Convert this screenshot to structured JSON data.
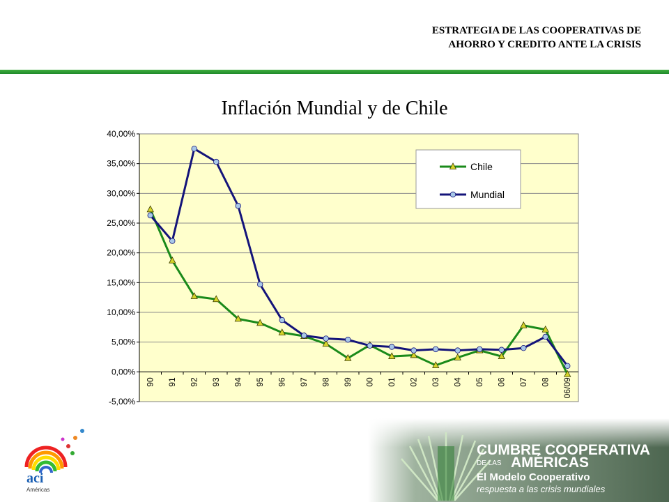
{
  "header": {
    "line1": "ESTRATEGIA DE LAS COOPERATIVAS DE",
    "line2": "AHORRO Y CREDITO ANTE LA CRISIS"
  },
  "chart_data": {
    "type": "line",
    "title": "Inflación  Mundial y de Chile",
    "categories": [
      "90",
      "91",
      "92",
      "93",
      "94",
      "95",
      "96",
      "97",
      "98",
      "99",
      "00",
      "01",
      "02",
      "03",
      "04",
      "05",
      "06",
      "07",
      "08",
      "06/09"
    ],
    "series": [
      {
        "name": "Chile",
        "color": "#1a8a1a",
        "marker": "triangle",
        "marker_color": "#d4d42a",
        "values": [
          27.3,
          18.7,
          12.7,
          12.2,
          8.9,
          8.2,
          6.6,
          6.0,
          4.7,
          2.3,
          4.5,
          2.6,
          2.8,
          1.1,
          2.4,
          3.6,
          2.6,
          7.8,
          7.1,
          -0.4
        ]
      },
      {
        "name": "Mundial",
        "color": "#14147a",
        "marker": "circle",
        "marker_color": "#a8c8e8",
        "values": [
          26.3,
          22.0,
          37.5,
          35.3,
          27.9,
          14.7,
          8.7,
          6.1,
          5.6,
          5.4,
          4.4,
          4.2,
          3.6,
          3.8,
          3.6,
          3.8,
          3.7,
          4.0,
          5.9,
          1.0
        ]
      }
    ],
    "y_ticks": [
      "40,00%",
      "35,00%",
      "30,00%",
      "25,00%",
      "20,00%",
      "15,00%",
      "10,00%",
      "5,00%",
      "0,00%",
      "-5,00%"
    ],
    "ylim": [
      -5,
      40
    ],
    "grid": true,
    "legend": "top-right",
    "plot_background": "#ffffcc"
  },
  "footer": {
    "aci_logo": "aci",
    "aci_sub": "Américas",
    "cumbre_line1": "CUMBRE COOPERATIVA",
    "cumbre_de_las": "DE LAS",
    "cumbre_americas": "AMÉRICAS",
    "modelo": "El Modelo Cooperativo",
    "respuesta": "respuesta a las crisis mundiales"
  }
}
